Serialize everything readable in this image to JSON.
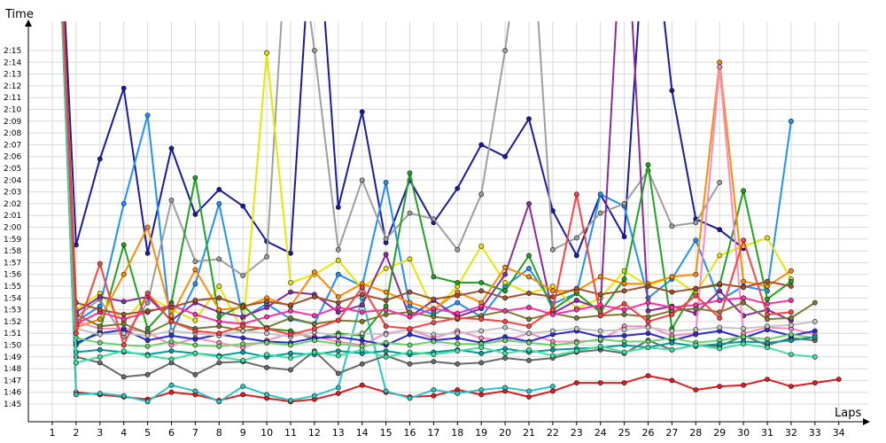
{
  "chart_data": {
    "type": "line",
    "ylabel": "Time",
    "xlabel": "Laps",
    "x": [
      1,
      2,
      3,
      4,
      5,
      6,
      7,
      8,
      9,
      10,
      11,
      12,
      13,
      14,
      15,
      16,
      17,
      18,
      19,
      20,
      21,
      22,
      23,
      24,
      25,
      26,
      27,
      28,
      29,
      30,
      31,
      32,
      33,
      34
    ],
    "y_ticks": [
      "1:45",
      "1:46",
      "1:47",
      "1:48",
      "1:49",
      "1:50",
      "1:51",
      "1:52",
      "1:53",
      "1:54",
      "1:55",
      "1:56",
      "1:57",
      "1:58",
      "1:59",
      "2:00",
      "2:01",
      "2:02",
      "2:03",
      "2:04",
      "2:05",
      "2:06",
      "2:07",
      "2:08",
      "2:09",
      "2:10",
      "2:11",
      "2:12",
      "2:13",
      "2:14",
      "2:15"
    ],
    "ylim": [
      104,
      137
    ],
    "grid": true,
    "series": [
      {
        "color": "#e41a1c",
        "values": [
          160,
          106.0,
          105.8,
          105.6,
          105.4,
          106.0,
          105.8,
          105.3,
          105.8,
          105.5,
          105.2,
          105.4,
          105.9,
          106.6,
          106.0,
          105.6,
          105.7,
          106.2,
          105.8,
          106.1,
          105.6,
          106.1,
          106.8,
          106.8,
          106.8,
          107.4,
          107.0,
          106.2,
          106.5,
          106.6,
          107.1,
          106.5,
          106.8,
          107.1
        ]
      },
      {
        "color": "#26c6c6",
        "values": [
          160,
          105.8,
          105.9,
          105.7,
          105.2,
          106.6,
          106.1,
          105.2,
          106.5,
          105.8,
          105.3,
          105.7,
          106.4,
          114.0,
          106.1,
          105.5,
          106.2,
          105.9,
          106.2,
          106.4,
          106.1,
          106.5,
          null,
          null,
          null,
          null,
          null,
          null,
          null,
          null,
          null,
          null,
          null,
          null
        ]
      },
      {
        "color": "#1a1aa8",
        "values": [
          160,
          118.5,
          125.8,
          131.8,
          117.8,
          126.7,
          121.1,
          123.2,
          121.8,
          118.8,
          117.8,
          150.0,
          121.7,
          129.8,
          118.7,
          124.0,
          120.4,
          123.3,
          127.0,
          126.0,
          129.2,
          121.4,
          117.6,
          122.8,
          119.2,
          150.0,
          131.6,
          120.7,
          119.8,
          118.2,
          null,
          null,
          null,
          null
        ]
      },
      {
        "color": "#1e90ff",
        "values": [
          160,
          112.0,
          113.3,
          122.0,
          129.5,
          111.0,
          115.2,
          122.0,
          112.3,
          113.5,
          112.2,
          111.8,
          116.0,
          115.0,
          123.8,
          113.3,
          112.6,
          113.6,
          112.4,
          115.0,
          116.5,
          113.5,
          114.4,
          122.8,
          121.8,
          114.0,
          115.6,
          118.9,
          113.8,
          115.0,
          114.6,
          129.0,
          null,
          null
        ]
      },
      {
        "color": "#9e9e9e",
        "values": [
          160,
          112.4,
          113.9,
          110.7,
          113.6,
          122.3,
          117.1,
          117.3,
          115.9,
          117.5,
          150.0,
          135.0,
          118.1,
          124.0,
          119.0,
          121.2,
          120.7,
          118.1,
          122.8,
          135.0,
          150.0,
          118.1,
          119.1,
          121.2,
          122.0,
          124.8,
          120.1,
          120.4,
          123.8,
          null,
          null,
          null,
          null,
          null
        ]
      },
      {
        "color": "#e6e600",
        "values": [
          160,
          113.0,
          114.4,
          112.0,
          114.2,
          113.0,
          112.1,
          115.0,
          111.2,
          134.8,
          115.3,
          116.0,
          117.2,
          114.8,
          116.5,
          117.3,
          112.9,
          115.0,
          118.4,
          115.3,
          114.4,
          115.0,
          113.1,
          114.0,
          116.3,
          115.0,
          115.8,
          114.4,
          117.6,
          118.4,
          119.1,
          115.6,
          null,
          null
        ]
      },
      {
        "color": "#8b2a9e",
        "values": [
          160,
          112.8,
          114.1,
          113.7,
          114.1,
          112.1,
          113.6,
          112.8,
          112.4,
          113.2,
          114.5,
          114.3,
          112.8,
          113.4,
          117.7,
          112.4,
          113.8,
          112.4,
          113.1,
          116.0,
          122.0,
          112.7,
          113.8,
          113.1,
          150.0,
          112.9,
          113.3,
          112.7,
          114.6,
          112.5,
          113.0,
          112.1,
          null,
          null
        ]
      },
      {
        "color": "#1fa31f",
        "values": [
          160,
          110.0,
          111.2,
          118.5,
          111.4,
          113.6,
          124.2,
          112.4,
          113.4,
          111.4,
          111.2,
          110.5,
          111.0,
          110.8,
          113.3,
          124.6,
          115.8,
          115.3,
          115.3,
          114.6,
          117.6,
          113.0,
          114.4,
          112.8,
          115.6,
          125.3,
          111.4,
          114.8,
          115.1,
          123.1,
          113.9,
          115.4,
          null,
          null
        ]
      },
      {
        "color": "#ff8c00",
        "values": [
          160,
          111.5,
          112.2,
          116.0,
          120.0,
          112.5,
          116.4,
          113.0,
          113.2,
          114.0,
          113.3,
          116.2,
          114.1,
          115.2,
          114.5,
          113.6,
          113.0,
          114.5,
          113.6,
          116.6,
          115.8,
          114.6,
          114.6,
          115.8,
          115.2,
          115.2,
          115.8,
          116.0,
          134.0,
          115.4,
          115.0,
          116.3,
          null,
          null
        ]
      },
      {
        "color": "#6b6b6b",
        "values": [
          160,
          109.0,
          108.5,
          107.3,
          107.5,
          108.5,
          107.5,
          108.5,
          108.6,
          108.1,
          107.9,
          109.5,
          107.6,
          108.4,
          109.1,
          108.4,
          108.6,
          108.4,
          108.5,
          108.9,
          108.7,
          108.9,
          109.4,
          109.6,
          109.3,
          110.4,
          109.6,
          110.0,
          109.9,
          110.8,
          110.0,
          110.6,
          110.4,
          null
        ]
      },
      {
        "color": "#ff88c2",
        "values": [
          160,
          112.0,
          111.4,
          111.4,
          111.1,
          110.0,
          110.6,
          110.2,
          109.8,
          110.4,
          111.0,
          110.7,
          110.3,
          110.0,
          111.0,
          111.3,
          110.6,
          111.2,
          110.6,
          110.4,
          111.0,
          110.3,
          110.3,
          110.4,
          111.6,
          111.6,
          110.8,
          111.0,
          133.6,
          111.0,
          111.5,
          111.4,
          110.9,
          null
        ]
      },
      {
        "color": "#7b7b33",
        "values": [
          160,
          112.6,
          111.6,
          111.8,
          111.0,
          112.0,
          111.4,
          111.6,
          111.2,
          111.5,
          112.3,
          111.8,
          112.1,
          112.0,
          112.6,
          112.8,
          112.4,
          112.2,
          112.5,
          112.9,
          112.2,
          112.7,
          112.3,
          112.5,
          112.6,
          112.4,
          112.9,
          113.1,
          112.8,
          113.6,
          112.2,
          112.3,
          113.6,
          null
        ]
      },
      {
        "color": "#2a2ad6",
        "values": [
          160,
          110.2,
          111.0,
          111.3,
          110.4,
          110.8,
          110.5,
          110.9,
          110.6,
          110.3,
          110.2,
          110.6,
          110.7,
          110.4,
          110.0,
          110.9,
          110.4,
          110.6,
          110.2,
          110.7,
          110.3,
          110.9,
          111.2,
          110.7,
          110.8,
          111.0,
          110.4,
          110.9,
          111.2,
          110.6,
          111.3,
          110.8,
          111.2,
          null
        ]
      },
      {
        "color": "#c4c4c4",
        "values": [
          160,
          111.4,
          110.9,
          111.0,
          110.8,
          111.2,
          111.0,
          110.8,
          111.2,
          111.0,
          110.7,
          111.1,
          110.8,
          111.0,
          110.9,
          111.3,
          110.9,
          111.0,
          111.2,
          111.5,
          111.0,
          111.2,
          111.4,
          111.2,
          111.3,
          111.5,
          111.2,
          111.3,
          111.5,
          111.4,
          111.6,
          111.7,
          112.0,
          null
        ]
      },
      {
        "color": "#6ad36a",
        "values": [
          160,
          110.6,
          110.2,
          110.0,
          109.9,
          110.3,
          110.0,
          109.9,
          110.1,
          110.2,
          110.0,
          110.4,
          110.1,
          109.9,
          110.2,
          110.0,
          110.3,
          110.1,
          110.1,
          110.4,
          110.2,
          110.0,
          110.2,
          110.5,
          110.3,
          110.3,
          110.6,
          110.2,
          110.4,
          110.7,
          110.5,
          110.9,
          110.6,
          null
        ]
      },
      {
        "color": "#009b9b",
        "values": [
          160,
          109.4,
          109.6,
          109.4,
          109.2,
          109.5,
          109.3,
          109.1,
          109.4,
          109.0,
          109.3,
          109.2,
          109.5,
          109.3,
          109.5,
          109.2,
          109.4,
          109.6,
          109.3,
          109.7,
          109.4,
          109.6,
          109.7,
          109.8,
          110.0,
          109.8,
          110.2,
          109.9,
          110.1,
          110.3,
          110.2,
          110.4,
          110.7,
          null
        ]
      },
      {
        "color": "#ff2fa8",
        "values": [
          160,
          111.8,
          112.8,
          112.2,
          112.8,
          113.4,
          112.6,
          112.0,
          111.8,
          112.4,
          112.9,
          112.5,
          113.2,
          112.8,
          113.0,
          112.4,
          113.1,
          112.7,
          113.3,
          112.9,
          113.2,
          112.6,
          113.0,
          113.4,
          113.0,
          113.6,
          113.2,
          113.4,
          113.8,
          114.0,
          113.5,
          113.8,
          null,
          null
        ]
      },
      {
        "color": "#a0522d",
        "values": [
          160,
          113.6,
          113.0,
          112.6,
          112.9,
          113.2,
          113.8,
          114.0,
          113.3,
          113.7,
          113.4,
          114.1,
          113.6,
          114.3,
          113.8,
          114.5,
          113.9,
          114.2,
          114.6,
          114.0,
          114.4,
          114.1,
          114.8,
          114.3,
          114.6,
          115.0,
          114.5,
          114.8,
          115.2,
          114.9,
          115.4,
          115.0,
          null,
          null
        ]
      },
      {
        "color": "#40e0a0",
        "values": [
          160,
          108.5,
          109.0,
          109.5,
          109.1,
          108.8,
          109.3,
          109.0,
          108.7,
          109.2,
          108.9,
          109.4,
          109.1,
          109.6,
          109.0,
          109.4,
          109.2,
          109.5,
          109.8,
          109.3,
          109.6,
          109.1,
          109.5,
          109.9,
          109.4,
          109.8,
          109.6,
          110.0,
          109.7,
          110.1,
          109.8,
          109.2,
          109.0,
          null
        ]
      },
      {
        "color": "#ff4040",
        "values": [
          160,
          111.0,
          116.9,
          110.0,
          114.4,
          112.0,
          111.2,
          111.0,
          111.6,
          111.4,
          110.9,
          111.4,
          112.1,
          114.9,
          111.6,
          111.4,
          111.9,
          112.3,
          112.2,
          112.0,
          111.6,
          113.0,
          122.8,
          112.5,
          113.5,
          112.0,
          112.6,
          114.2,
          112.3,
          118.9,
          112.6,
          112.8,
          null,
          null
        ]
      }
    ]
  }
}
